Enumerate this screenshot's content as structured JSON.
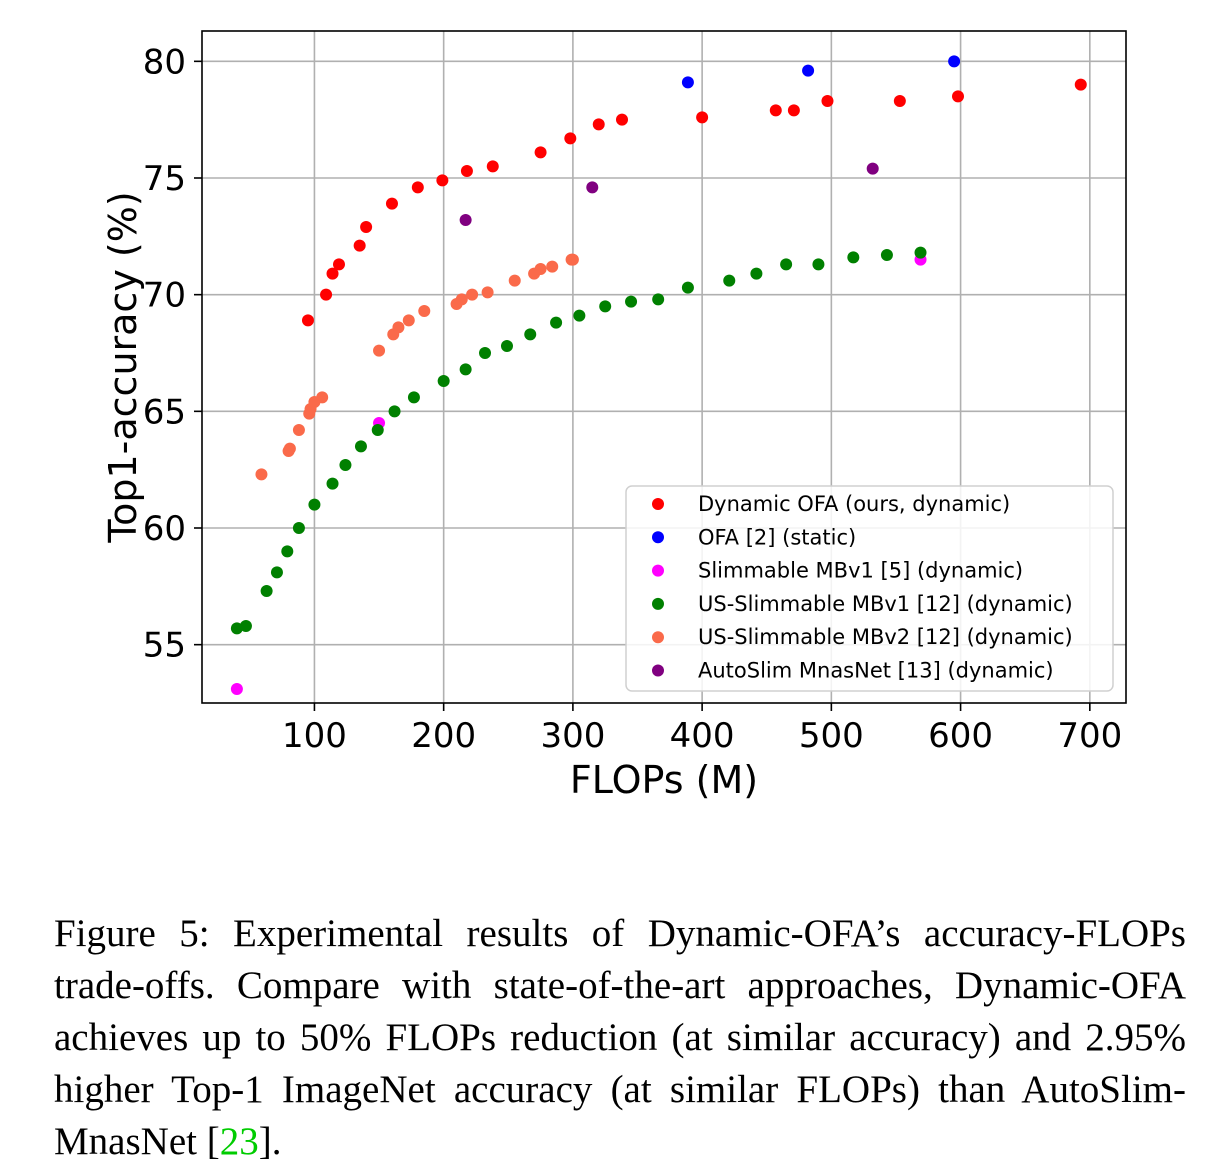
{
  "chart_data": {
    "type": "scatter",
    "xlabel": "FLOPs (M)",
    "ylabel": "Top1-accuracy (%)",
    "xlim": [
      13,
      728
    ],
    "ylim": [
      52.5,
      81.3
    ],
    "xticks": [
      100,
      200,
      300,
      400,
      500,
      600,
      700
    ],
    "yticks": [
      55,
      60,
      65,
      70,
      75,
      80
    ],
    "grid": true,
    "legend_position": "lower-right",
    "series": [
      {
        "name": "Dynamic OFA (ours, dynamic)",
        "color": "#ff0000",
        "points": [
          [
            95,
            68.9
          ],
          [
            109,
            70.0
          ],
          [
            114,
            70.9
          ],
          [
            119,
            71.3
          ],
          [
            135,
            72.1
          ],
          [
            140,
            72.9
          ],
          [
            160,
            73.9
          ],
          [
            180,
            74.6
          ],
          [
            199,
            74.9
          ],
          [
            218,
            75.3
          ],
          [
            238,
            75.5
          ],
          [
            275,
            76.1
          ],
          [
            298,
            76.7
          ],
          [
            320,
            77.3
          ],
          [
            338,
            77.5
          ],
          [
            400,
            77.6
          ],
          [
            457,
            77.9
          ],
          [
            471,
            77.9
          ],
          [
            497,
            78.3
          ],
          [
            553,
            78.3
          ],
          [
            598,
            78.5
          ],
          [
            693,
            79.0
          ]
        ]
      },
      {
        "name": "OFA [2] (static)",
        "color": "#0000ff",
        "points": [
          [
            389,
            79.1
          ],
          [
            482,
            79.6
          ],
          [
            595,
            80.0
          ]
        ]
      },
      {
        "name": "Slimmable MBv1 [5] (dynamic)",
        "color": "#ff00ff",
        "points": [
          [
            40,
            53.1
          ],
          [
            150,
            64.5
          ],
          [
            569,
            71.5
          ]
        ]
      },
      {
        "name": "US-Slimmable MBv1 [12] (dynamic)",
        "color": "#008000",
        "points": [
          [
            40,
            55.7
          ],
          [
            47,
            55.8
          ],
          [
            63,
            57.3
          ],
          [
            71,
            58.1
          ],
          [
            79,
            59.0
          ],
          [
            88,
            60.0
          ],
          [
            100,
            61.0
          ],
          [
            114,
            61.9
          ],
          [
            124,
            62.7
          ],
          [
            136,
            63.5
          ],
          [
            149,
            64.2
          ],
          [
            162,
            65.0
          ],
          [
            177,
            65.6
          ],
          [
            200,
            66.3
          ],
          [
            217,
            66.8
          ],
          [
            232,
            67.5
          ],
          [
            249,
            67.8
          ],
          [
            267,
            68.3
          ],
          [
            287,
            68.8
          ],
          [
            305,
            69.1
          ],
          [
            325,
            69.5
          ],
          [
            345,
            69.7
          ],
          [
            366,
            69.8
          ],
          [
            389,
            70.3
          ],
          [
            421,
            70.6
          ],
          [
            442,
            70.9
          ],
          [
            465,
            71.3
          ],
          [
            490,
            71.3
          ],
          [
            517,
            71.6
          ],
          [
            543,
            71.7
          ],
          [
            569,
            71.8
          ]
        ]
      },
      {
        "name": "US-Slimmable MBv2 [12] (dynamic)",
        "color": "#fa6a4a",
        "points": [
          [
            59,
            62.3
          ],
          [
            80,
            63.3
          ],
          [
            81,
            63.4
          ],
          [
            88,
            64.2
          ],
          [
            96,
            64.9
          ],
          [
            97,
            65.1
          ],
          [
            100,
            65.4
          ],
          [
            106,
            65.6
          ],
          [
            150,
            67.6
          ],
          [
            161,
            68.3
          ],
          [
            165,
            68.6
          ],
          [
            173,
            68.9
          ],
          [
            185,
            69.3
          ],
          [
            210,
            69.6
          ],
          [
            214,
            69.8
          ],
          [
            222,
            70.0
          ],
          [
            234,
            70.1
          ],
          [
            255,
            70.6
          ],
          [
            270,
            70.9
          ],
          [
            275,
            71.1
          ],
          [
            284,
            71.2
          ],
          [
            299,
            71.5
          ],
          [
            300,
            71.5
          ]
        ]
      },
      {
        "name": "AutoSlim MnasNet [13] (dynamic)",
        "color": "#800080",
        "points": [
          [
            217,
            73.2
          ],
          [
            315,
            74.6
          ],
          [
            532,
            75.4
          ]
        ]
      }
    ]
  },
  "caption": {
    "text": "Figure 5:  Experimental results of Dynamic-OFA’s accuracy-FLOPs trade-offs.  Compare with state-of-the-art approaches, Dynamic-OFA achieves up to 50% FLOPs reduction (at similar accuracy) and 2.95% higher Top-1 ImageNet accuracy (at similar FLOPs) than AutoSlim-MnasNet [",
    "citation": "23",
    "end": "]."
  }
}
